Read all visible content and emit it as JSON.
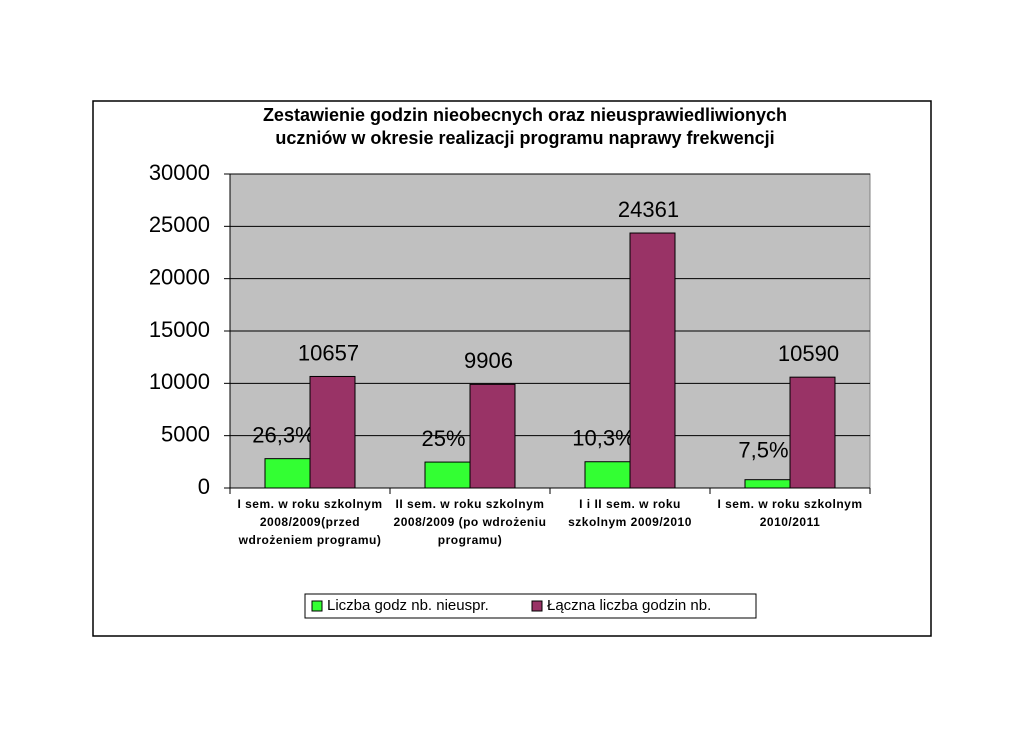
{
  "chart_data": {
    "type": "bar",
    "title": "Zestawienie godzin nieobecnych oraz nieusprawiedliwionych uczniów w okresie realizacji programu naprawy frekwencji",
    "categories": [
      "I sem. w roku szkolnym 2008/2009(przed wdrożeniem programu)",
      "II sem. w roku szkolnym 2008/2009 (po wdrożeniu programu)",
      "I i II sem. w roku szkolnym 2009/2010",
      "I sem. w roku szkolnym 2010/2011"
    ],
    "series": [
      {
        "name": "Liczba godz nb. nieuspr.",
        "color": "#33ff33",
        "values": [
          2803,
          2477,
          2509,
          794
        ],
        "annotations": [
          "26,3%",
          "25%",
          "10,3%",
          "7,5%"
        ]
      },
      {
        "name": "Łączna liczba godzin nb.",
        "color": "#993366",
        "values": [
          10657,
          9906,
          24361,
          10590
        ]
      }
    ],
    "ylim": [
      0,
      30000
    ],
    "yticks": [
      0,
      5000,
      10000,
      15000,
      20000,
      25000,
      30000
    ],
    "grid": true
  }
}
